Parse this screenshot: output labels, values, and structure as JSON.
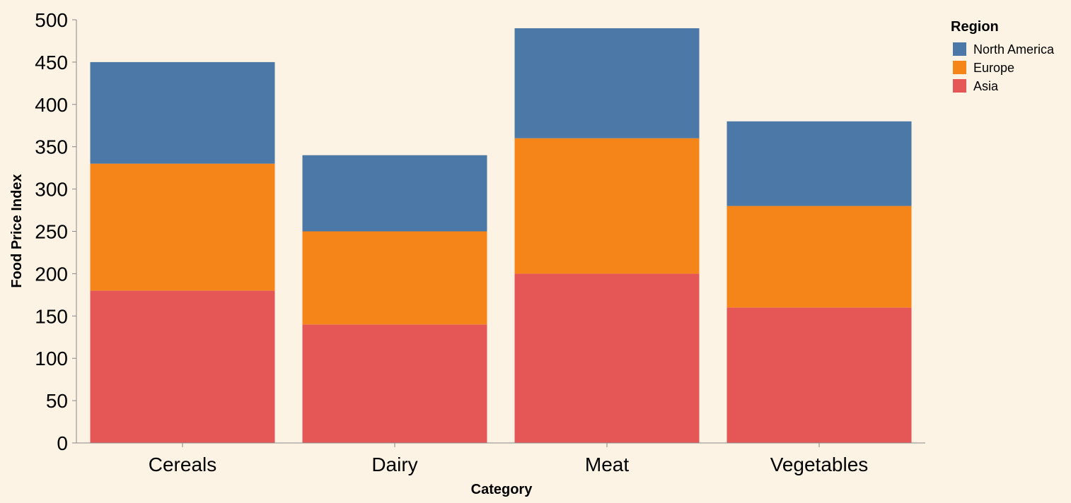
{
  "chart_data": {
    "type": "bar",
    "stacked": true,
    "categories": [
      "Cereals",
      "Dairy",
      "Meat",
      "Vegetables"
    ],
    "series": [
      {
        "name": "Asia",
        "color": "#e45756",
        "values": [
          180,
          140,
          200,
          160
        ]
      },
      {
        "name": "Europe",
        "color": "#f58518",
        "values": [
          150,
          110,
          160,
          120
        ]
      },
      {
        "name": "North America",
        "color": "#4c78a8",
        "values": [
          120,
          90,
          130,
          100
        ]
      }
    ],
    "xlabel": "Category",
    "ylabel": "Food Price Index",
    "ylim": [
      0,
      500
    ],
    "yticks": [
      0,
      50,
      100,
      150,
      200,
      250,
      300,
      350,
      400,
      450,
      500
    ],
    "grid": false,
    "legend": {
      "title": "Region",
      "placement": "top-right",
      "order": [
        "North America",
        "Europe",
        "Asia"
      ]
    }
  }
}
